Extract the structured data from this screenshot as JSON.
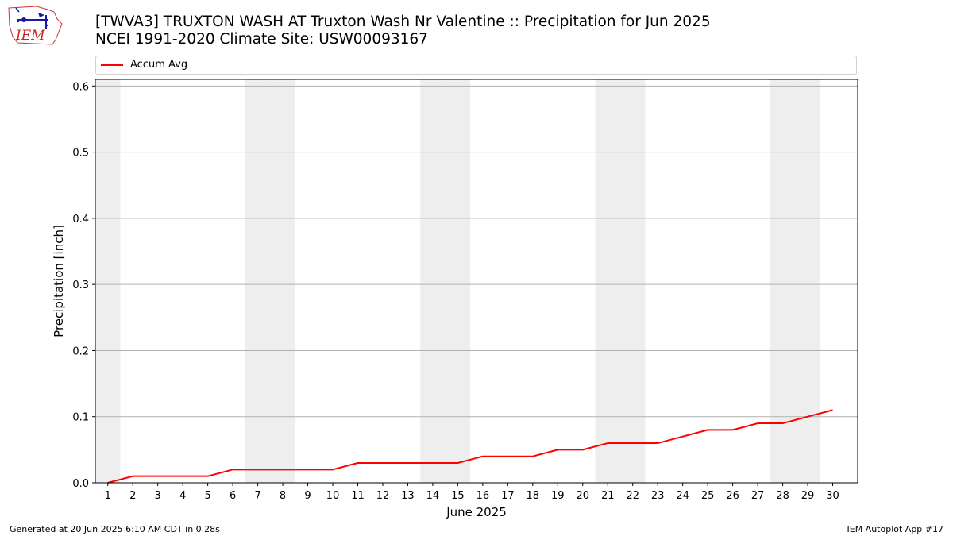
{
  "header": {
    "logo_text": "IEM",
    "title_line1": "[TWVA3] TRUXTON WASH  AT Truxton Wash Nr Valentine :: Precipitation for Jun 2025",
    "title_line2": "NCEI 1991-2020 Climate Site: USW00093167"
  },
  "footer": {
    "generated": "Generated at 20 Jun 2025 6:10 AM CDT in 0.28s",
    "app": "IEM Autoplot App #17"
  },
  "chart_data": {
    "type": "line",
    "title": "[TWVA3] TRUXTON WASH  AT Truxton Wash Nr Valentine :: Precipitation for Jun 2025",
    "subtitle": "NCEI 1991-2020 Climate Site: USW00093167",
    "xlabel": "June 2025",
    "ylabel": "Precipitation [inch]",
    "xlim": [
      0.5,
      31
    ],
    "ylim": [
      0,
      0.61
    ],
    "x": [
      1,
      2,
      3,
      4,
      5,
      6,
      7,
      8,
      9,
      10,
      11,
      12,
      13,
      14,
      15,
      16,
      17,
      18,
      19,
      20,
      21,
      22,
      23,
      24,
      25,
      26,
      27,
      28,
      29,
      30
    ],
    "x_ticks": [
      "1",
      "2",
      "3",
      "4",
      "5",
      "6",
      "7",
      "8",
      "9",
      "10",
      "11",
      "12",
      "13",
      "14",
      "15",
      "16",
      "17",
      "18",
      "19",
      "20",
      "21",
      "22",
      "23",
      "24",
      "25",
      "26",
      "27",
      "28",
      "29",
      "30"
    ],
    "y_ticks": [
      "0.0",
      "0.1",
      "0.2",
      "0.3",
      "0.4",
      "0.5",
      "0.6"
    ],
    "series": [
      {
        "name": "Accum Avg",
        "color": "#ff0000",
        "values": [
          0.0,
          0.01,
          0.01,
          0.01,
          0.01,
          0.02,
          0.02,
          0.02,
          0.02,
          0.02,
          0.03,
          0.03,
          0.03,
          0.03,
          0.03,
          0.04,
          0.04,
          0.04,
          0.05,
          0.05,
          0.06,
          0.06,
          0.06,
          0.07,
          0.08,
          0.08,
          0.09,
          0.09,
          0.1,
          0.11
        ]
      }
    ],
    "weekend_days": [
      1,
      7,
      8,
      14,
      15,
      21,
      22,
      28,
      29
    ],
    "weekend_shade_color": "#eeeeee",
    "grid": "horizontal",
    "legend_position": "top"
  }
}
